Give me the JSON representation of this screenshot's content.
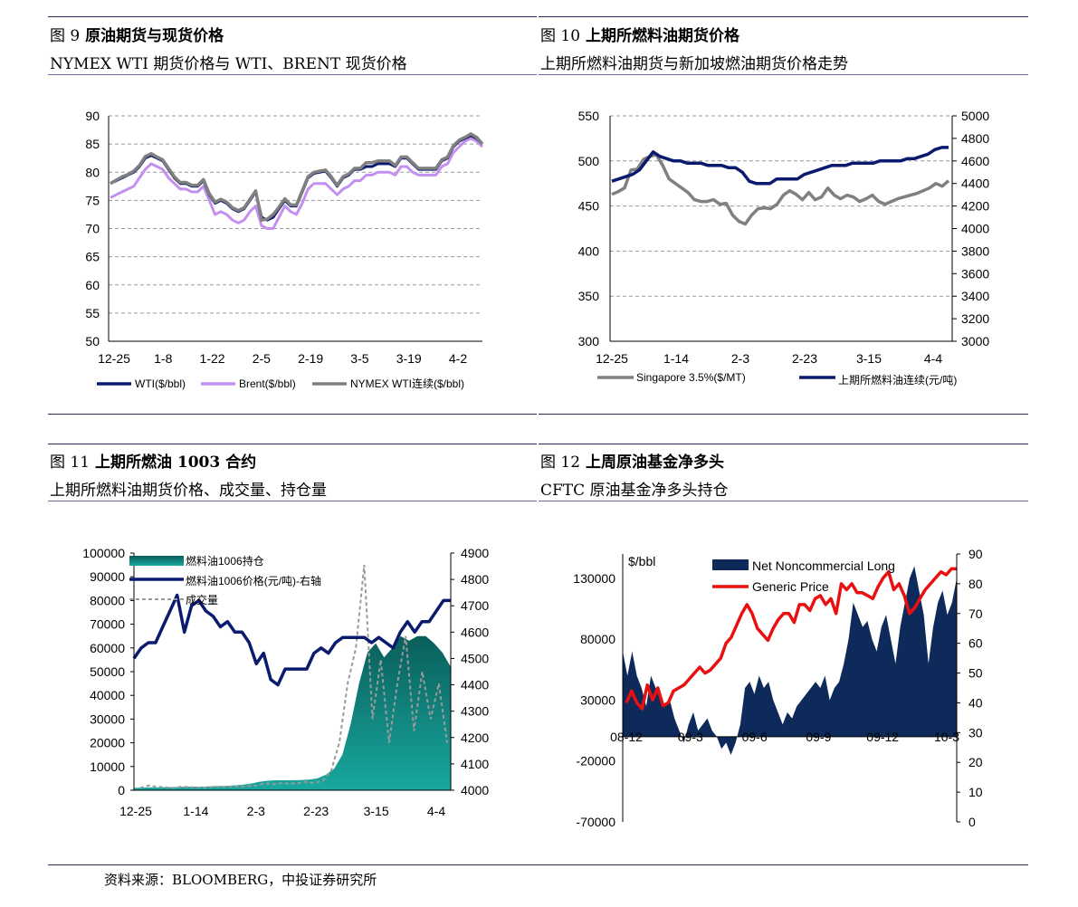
{
  "panels": [
    {
      "fig": "图 9",
      "title": "原油期货与现货价格",
      "subtitle": "NYMEX WTI 期货价格与 WTI、BRENT 现货价格"
    },
    {
      "fig": "图 10",
      "title": "上期所燃料油期货价格",
      "subtitle": "上期所燃料油期货与新加坡燃油期货价格走势"
    },
    {
      "fig": "图 11",
      "title": "上期所燃油 1003 合约",
      "subtitle": "上期所燃料油期货价格、成交量、持仓量"
    },
    {
      "fig": "图 12",
      "title": "上周原油基金净多头",
      "subtitle": "CFTC 原油基金净多头持仓"
    }
  ],
  "source": "资料来源：BLOOMBERG，中投证券研究所",
  "colors": {
    "navy": "#0a1a6e",
    "lilac": "#c490ef",
    "gray": "#808080",
    "teal": "#0e7d78",
    "red": "#e81010",
    "area_navy": "#0d2a5a"
  },
  "chart_data": [
    {
      "id": "fig9",
      "type": "line",
      "yticks": [
        "90",
        "85",
        "80",
        "75",
        "70",
        "65",
        "60",
        "55",
        "50"
      ],
      "ylim": [
        50,
        90
      ],
      "xticks": [
        "12-25",
        "1-8",
        "1-22",
        "2-5",
        "2-19",
        "3-5",
        "3-19",
        "4-2"
      ],
      "legend": [
        "WTI($/bbl)",
        "Brent($/bbl)",
        "NYMEX WTI连续($/bbl)"
      ],
      "series": [
        {
          "name": "WTI($/bbl)",
          "values": [
            78,
            78.5,
            79,
            79.5,
            80,
            81,
            82.5,
            83,
            82.5,
            82,
            80.5,
            79,
            78,
            78,
            77.5,
            77.5,
            78.5,
            76,
            74.5,
            75,
            74.5,
            73.5,
            73,
            73.5,
            75,
            76.5,
            72,
            71.5,
            72,
            73.5,
            75,
            74,
            74,
            76.5,
            79,
            79.8,
            80,
            80.2,
            79,
            77.5,
            79,
            79.5,
            80.5,
            80.5,
            81,
            81,
            81.5,
            81.5,
            81.5,
            81,
            82.5,
            82.5,
            81.5,
            80.5,
            80.5,
            80.5,
            80.5,
            82,
            82.5,
            84.5,
            85.5,
            86,
            86.5,
            86,
            85
          ]
        },
        {
          "name": "Brent($/bbl)",
          "values": [
            75.5,
            76,
            76.5,
            77,
            77.5,
            79,
            80.5,
            81.5,
            81,
            80.5,
            79,
            78,
            77,
            77,
            76.5,
            76.5,
            77.5,
            75,
            72.5,
            73,
            72.5,
            71.5,
            71,
            71.5,
            73,
            74,
            70.5,
            70,
            70,
            72,
            74,
            73,
            72.5,
            74.5,
            77,
            78,
            78,
            78,
            77,
            76,
            77,
            77.5,
            78.5,
            78.5,
            79.5,
            79.5,
            80,
            80,
            80,
            79.5,
            81,
            81,
            80,
            79.5,
            79.5,
            79.5,
            79.5,
            81,
            81.5,
            83.5,
            84.5,
            85.5,
            86,
            85.5,
            84.5
          ]
        },
        {
          "name": "NYMEX WTI连续($/bbl)",
          "values": [
            78,
            78.6,
            79.2,
            79.6,
            80.2,
            81.2,
            82.8,
            83.3,
            82.7,
            82.2,
            80.7,
            79.2,
            78.2,
            78.2,
            77.7,
            77.7,
            78.7,
            76.2,
            74.7,
            75.2,
            74.7,
            73.7,
            73.2,
            73.7,
            75.2,
            76.7,
            71.5,
            71.7,
            72.5,
            73.8,
            75.3,
            74.2,
            74.2,
            76.7,
            79.2,
            80,
            80.2,
            80.4,
            79.2,
            77.7,
            79.2,
            79.7,
            80.7,
            80.7,
            81.7,
            81.7,
            82,
            82,
            82,
            81.2,
            82.7,
            82.7,
            81.7,
            80.7,
            80.7,
            80.7,
            80.7,
            82.2,
            82.7,
            84.7,
            85.7,
            86.2,
            86.8,
            86.2,
            85
          ]
        }
      ]
    },
    {
      "id": "fig10",
      "type": "line",
      "yticks_left": [
        "550",
        "500",
        "450",
        "400",
        "350",
        "300"
      ],
      "ylim_left": [
        300,
        550
      ],
      "yticks_right": [
        "5000",
        "4800",
        "4600",
        "4400",
        "4200",
        "4000",
        "3800",
        "3600",
        "3400",
        "3200",
        "3000"
      ],
      "ylim_right": [
        3000,
        5000
      ],
      "xticks": [
        "12-25",
        "1-14",
        "2-3",
        "2-23",
        "3-15",
        "4-4"
      ],
      "legend": [
        "Singapore 3.5%($/MT)",
        "上期所燃料油连续(元/吨)"
      ],
      "series": [
        {
          "name": "Singapore 3.5%($/MT)",
          "values": [
            463,
            466,
            470,
            490,
            491,
            502,
            505,
            507,
            495,
            480,
            475,
            470,
            465,
            457,
            455,
            455,
            457,
            452,
            453,
            440,
            433,
            430,
            440,
            447,
            448,
            447,
            452,
            462,
            467,
            463,
            457,
            465,
            457,
            460,
            470,
            462,
            458,
            462,
            460,
            455,
            458,
            462,
            455,
            452,
            455,
            458,
            460,
            462,
            464,
            467,
            470,
            475,
            472,
            478
          ]
        },
        {
          "name": "上期所燃料油连续(元/吨)",
          "values": [
            4420,
            4440,
            4460,
            4480,
            4520,
            4600,
            4680,
            4640,
            4620,
            4600,
            4600,
            4580,
            4580,
            4580,
            4560,
            4560,
            4560,
            4540,
            4540,
            4500,
            4420,
            4400,
            4400,
            4400,
            4440,
            4440,
            4440,
            4440,
            4480,
            4500,
            4520,
            4540,
            4560,
            4560,
            4560,
            4580,
            4580,
            4580,
            4580,
            4600,
            4600,
            4600,
            4600,
            4620,
            4620,
            4640,
            4660,
            4700,
            4720,
            4720
          ]
        }
      ]
    },
    {
      "id": "fig11",
      "type": "line",
      "yticks_left": [
        "100000",
        "90000",
        "80000",
        "70000",
        "60000",
        "50000",
        "40000",
        "30000",
        "20000",
        "10000",
        "0"
      ],
      "ylim_left": [
        0,
        100000
      ],
      "yticks_right": [
        "4900",
        "4800",
        "4700",
        "4600",
        "4500",
        "4400",
        "4300",
        "4200",
        "4100",
        "4000"
      ],
      "ylim_right": [
        4000,
        4900
      ],
      "xticks": [
        "12-25",
        "1-14",
        "2-3",
        "2-23",
        "3-15",
        "4-4"
      ],
      "legend": [
        "燃料油1006持仓",
        "燃料油1006价格(元/吨)-右轴",
        "成交量"
      ],
      "series": [
        {
          "name": "燃料油1006持仓",
          "values": [
            1000,
            1100,
            1200,
            1200,
            1300,
            1300,
            1400,
            1500,
            1500,
            1600,
            1700,
            1800,
            2000,
            2300,
            2800,
            3500,
            4000,
            4200,
            4200,
            4200,
            4300,
            4500,
            5000,
            6500,
            9000,
            15000,
            28000,
            45000,
            58000,
            62000,
            56000,
            60000,
            65000,
            63000,
            65000,
            65000,
            62000,
            58000,
            52000
          ]
        },
        {
          "name": "燃料油1006价格(元/吨)-右轴",
          "values": [
            4500,
            4540,
            4560,
            4560,
            4620,
            4680,
            4740,
            4600,
            4700,
            4720,
            4680,
            4660,
            4620,
            4640,
            4600,
            4600,
            4560,
            4480,
            4520,
            4420,
            4400,
            4460,
            4460,
            4460,
            4460,
            4520,
            4540,
            4520,
            4560,
            4580,
            4580,
            4580,
            4580,
            4560,
            4580,
            4560,
            4540,
            4600,
            4640,
            4600,
            4640,
            4640,
            4680,
            4720,
            4720
          ]
        },
        {
          "name": "成交量",
          "values": [
            1000,
            2000,
            1500,
            1200,
            1000,
            1500,
            1300,
            1100,
            1200,
            1500,
            1400,
            1600,
            1500,
            1800,
            2000,
            3000,
            2500,
            3000,
            2800,
            3000,
            3500,
            3000,
            4000,
            8000,
            20000,
            45000,
            60000,
            95000,
            30000,
            55000,
            20000,
            45000,
            65000,
            25000,
            50000,
            30000,
            45000,
            20000
          ]
        }
      ]
    },
    {
      "id": "fig12",
      "type": "area",
      "ylabel_left": "$/bbl",
      "yticks_left": [
        "130000",
        "80000",
        "30000",
        "-20000",
        "-70000"
      ],
      "ylim_left": [
        -70000,
        150000
      ],
      "yticks_right": [
        "90",
        "80",
        "70",
        "60",
        "50",
        "40",
        "30",
        "20",
        "10",
        "0"
      ],
      "ylim_right": [
        0,
        90
      ],
      "xticks": [
        "08-12",
        "09-3",
        "09-6",
        "09-9",
        "09-12",
        "10-3"
      ],
      "legend": [
        "Net Noncommercial Long",
        "Generic Price"
      ],
      "series": [
        {
          "name": "Net Noncommercial Long",
          "values": [
            70000,
            50000,
            70000,
            50000,
            40000,
            25000,
            50000,
            40000,
            30000,
            25000,
            30000,
            15000,
            5000,
            -5000,
            10000,
            20000,
            5000,
            10000,
            15000,
            5000,
            0,
            -10000,
            -5000,
            -15000,
            -5000,
            10000,
            40000,
            45000,
            35000,
            50000,
            40000,
            45000,
            30000,
            20000,
            10000,
            20000,
            15000,
            25000,
            30000,
            35000,
            40000,
            45000,
            40000,
            50000,
            30000,
            40000,
            45000,
            60000,
            80000,
            110000,
            100000,
            90000,
            95000,
            80000,
            70000,
            90000,
            100000,
            80000,
            60000,
            90000,
            110000,
            130000,
            140000,
            120000,
            100000,
            60000,
            90000,
            110000,
            120000,
            100000,
            110000,
            130000
          ]
        },
        {
          "name": "Generic Price",
          "values": [
            40,
            44,
            40,
            38,
            46,
            41,
            45,
            39,
            40,
            44,
            45,
            46,
            48,
            50,
            52,
            50,
            51,
            53,
            55,
            60,
            62,
            66,
            70,
            73,
            70,
            65,
            63,
            61,
            65,
            68,
            70,
            70,
            67,
            73,
            73,
            71,
            75,
            76,
            73,
            75,
            70,
            80,
            78,
            80,
            77,
            77,
            76,
            75,
            79,
            82,
            84,
            78,
            80,
            76,
            70,
            72,
            75,
            78,
            80,
            82,
            84,
            83,
            85,
            85
          ]
        }
      ]
    }
  ]
}
